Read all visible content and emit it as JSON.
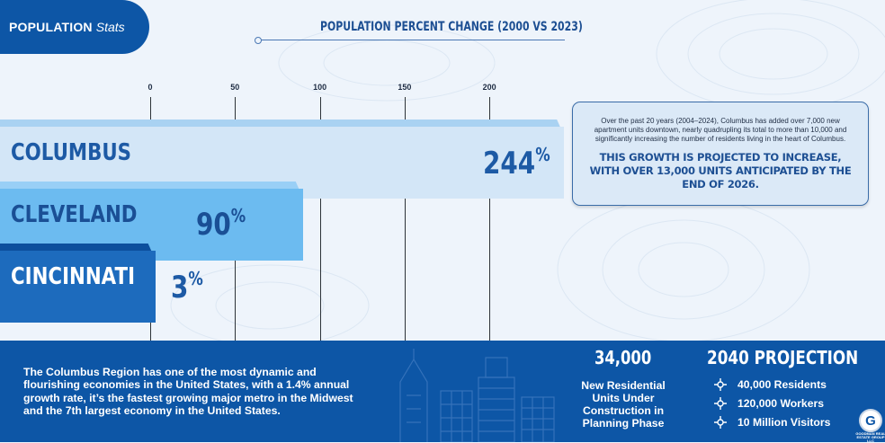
{
  "header": {
    "badge_bold": "POPULATION",
    "badge_italic": "Stats"
  },
  "chart_data": {
    "type": "bar",
    "orientation": "horizontal",
    "title": "POPULATION PERCENT CHANGE (2000 VS 2023)",
    "categories": [
      "COLUMBUS",
      "CLEVELAND",
      "CINCINNATI"
    ],
    "values": [
      244,
      90,
      3
    ],
    "value_labels": [
      "244",
      "90",
      "3"
    ],
    "value_suffix": "%",
    "ticks": [
      0,
      50,
      100,
      150,
      200
    ],
    "tick_labels": [
      "0",
      "50",
      "100",
      "150",
      "200"
    ],
    "xlim": [
      -88,
      244
    ],
    "grid": true,
    "colors": {
      "COLUMBUS": {
        "fill": "#d3e6f7",
        "top": "#a9d2f2",
        "text": "#1d5aa5"
      },
      "CLEVELAND": {
        "fill": "#6cbbf0",
        "top": "#99cff6",
        "text": "#1a4f95"
      },
      "CINCINNATI": {
        "fill": "#1d6bbd",
        "top": "#0d4f9d",
        "text": "#ffffff"
      }
    }
  },
  "info": {
    "body": "Over the past 20 years (2004–2024),  Columbus has added over 7,000 new apartment units downtown, nearly quadrupling its total to more than 10,000 and significantly increasing the number of residents living in the heart of Columbus.",
    "highlight": "THIS GROWTH IS PROJECTED TO INCREASE, WITH OVER 13,000 UNITS ANTICIPATED BY THE END OF 2026."
  },
  "footer": {
    "region_text": "The Columbus Region has one of the most dynamic and flourishing economies in the United States, with a 1.4% annual growth rate, it’s the fastest growing major metro in the Midwest and the 7th largest economy in the United States.",
    "units_number": "34,000",
    "units_text": "New Residential Units Under Construction in Planning Phase",
    "projection_title": "2040 PROJECTION",
    "projection_items": [
      "40,000 Residents",
      "120,000 Workers",
      "10 Million Visitors"
    ],
    "logo_letter": "G",
    "logo_text": "GOODMAN REAL ESTATE GROUP LLC"
  },
  "colors": {
    "brand_blue": "#0d56a6",
    "background": "#eef4fb",
    "title_blue": "#1d4f93"
  }
}
